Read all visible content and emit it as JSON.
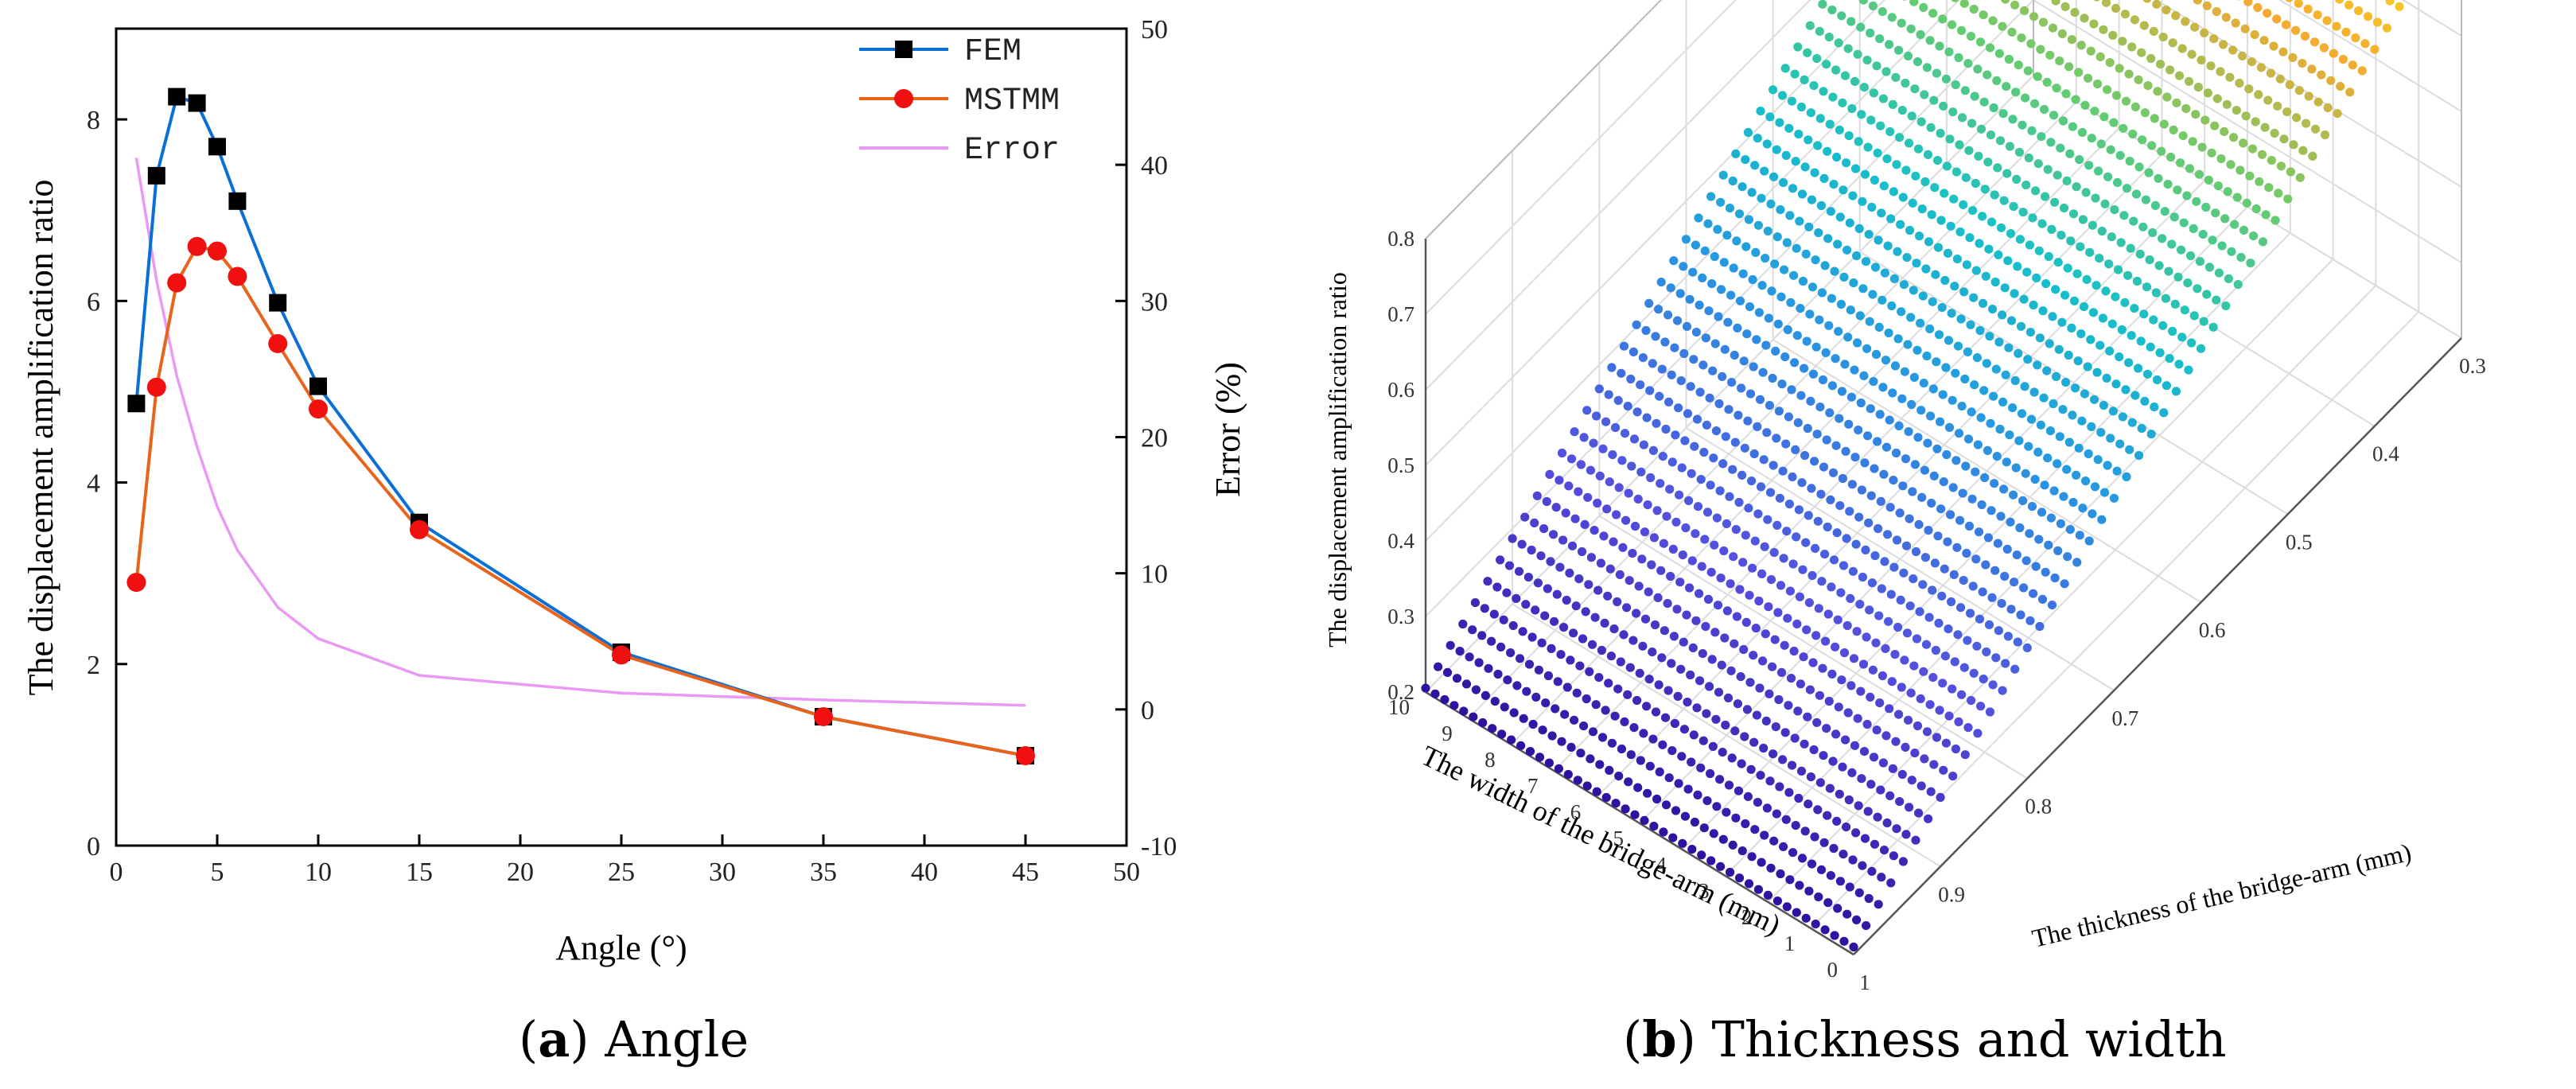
{
  "chart_data": [
    {
      "type": "line",
      "caption_letter": "a",
      "caption_text": "Angle",
      "xlabel": "Angle (°)",
      "ylabel": "The displacement amplification ratio",
      "y2label": "Error (%)",
      "xlim": [
        0,
        50
      ],
      "ylim": [
        0,
        9
      ],
      "y2lim": [
        -10,
        50
      ],
      "xticks": [
        0,
        5,
        10,
        15,
        20,
        25,
        30,
        35,
        40,
        45,
        50
      ],
      "yticks": [
        0,
        2,
        4,
        6,
        8
      ],
      "y2ticks": [
        -10,
        0,
        10,
        20,
        30,
        40,
        50
      ],
      "legend_position": "top-right",
      "grid": false,
      "series": [
        {
          "name": "FEM",
          "color": "#0a6fd6",
          "marker": "square",
          "axis": "left",
          "x": [
            1,
            2,
            3,
            4,
            5,
            6,
            8,
            10,
            15,
            25,
            35,
            45
          ],
          "y": [
            4.87,
            7.38,
            8.25,
            8.18,
            7.7,
            7.1,
            5.98,
            5.06,
            3.56,
            2.13,
            1.42,
            0.99
          ]
        },
        {
          "name": "MSTMM",
          "color": "#e8641b",
          "marker": "circle",
          "axis": "left",
          "x": [
            1,
            2,
            3,
            4,
            5,
            6,
            8,
            10,
            15,
            25,
            35,
            45
          ],
          "y": [
            2.9,
            5.05,
            6.2,
            6.6,
            6.55,
            6.27,
            5.53,
            4.81,
            3.48,
            2.1,
            1.42,
            0.99
          ]
        },
        {
          "name": "Error",
          "color": "#e99af2",
          "marker": "none",
          "axis": "right",
          "x": [
            1,
            2,
            3,
            4,
            5,
            6,
            8,
            10,
            15,
            25,
            35,
            45
          ],
          "y": [
            40.5,
            31.5,
            24.5,
            19.3,
            14.9,
            11.7,
            7.5,
            5.2,
            2.5,
            1.2,
            0.7,
            0.3
          ]
        }
      ]
    },
    {
      "type": "scatter3d",
      "caption_letter": "b",
      "caption_text": "Thickness and width",
      "zlabel": "The displacement amplification ratio",
      "xlabel": "The thickness of the bridge-arm (mm)",
      "ylabel": "The width of the bridge-arm (mm)",
      "thickness_ticks": [
        "1",
        "0.9",
        "0.8",
        "0.7",
        "0.6",
        "0.5",
        "0.4",
        "0.3"
      ],
      "width_ticks": [
        "0",
        "1",
        "2",
        "3",
        "4",
        "5",
        "6",
        "7",
        "8",
        "9",
        "10"
      ],
      "z_ticks": [
        "0.2",
        "0.3",
        "0.4",
        "0.5",
        "0.6",
        "0.7",
        "0.8"
      ],
      "thickness_range": [
        1,
        0.3
      ],
      "width_range": [
        0,
        10
      ],
      "z_range": [
        0.2,
        0.8
      ],
      "rows": 50,
      "points_per_row": 46,
      "z_min_value": 0.21,
      "z_max_value": 0.78,
      "colormap": "plasma-like (blue to yellow)",
      "grid": true
    }
  ]
}
